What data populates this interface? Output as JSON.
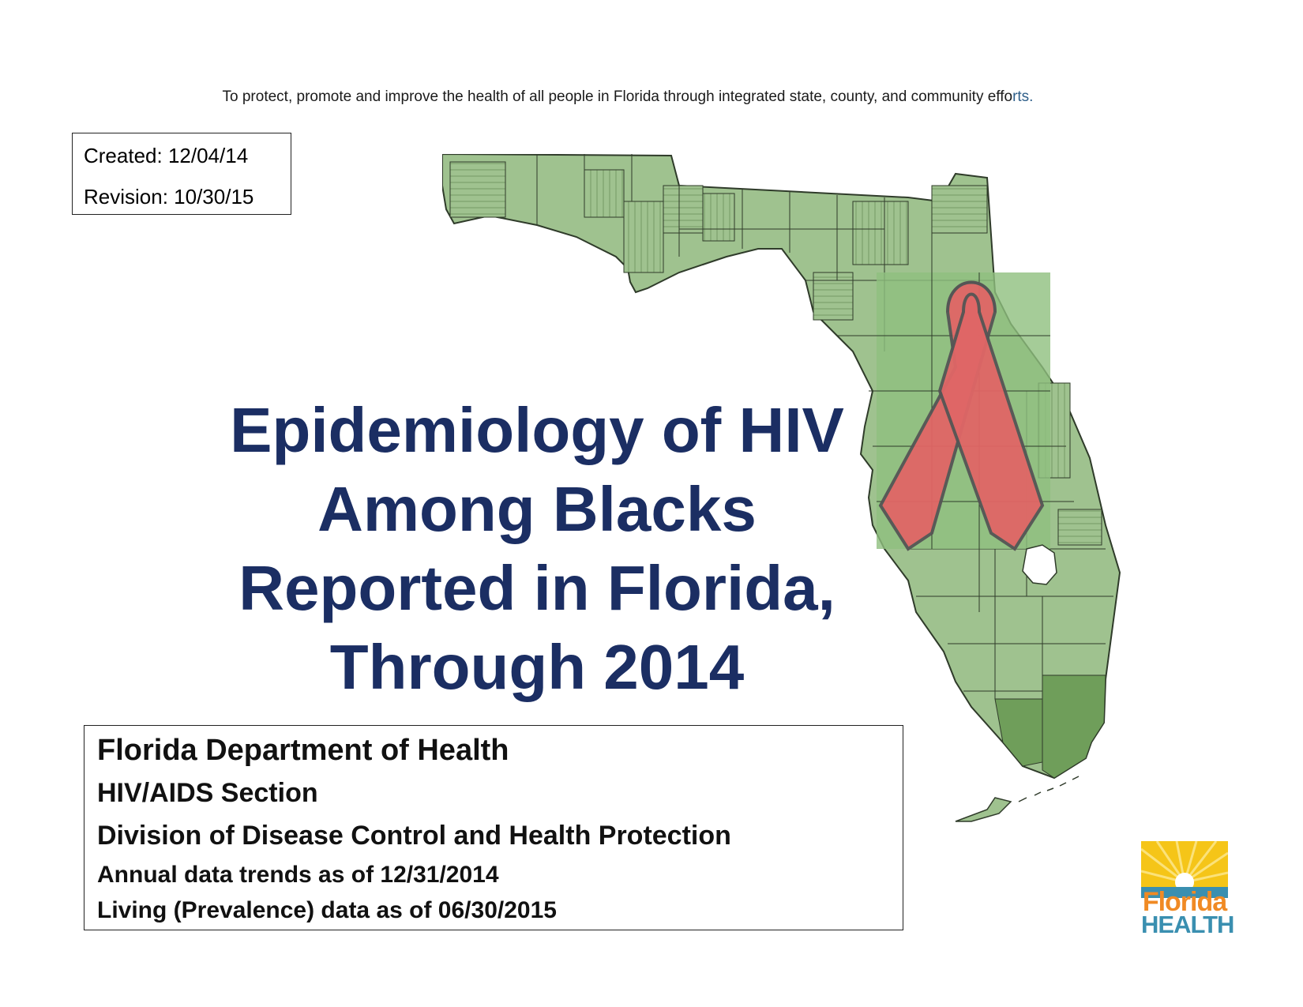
{
  "mission": {
    "text": "To protect, promote and improve the health of all people in Florida through integrated state, county, and community effo",
    "tail": "rts."
  },
  "dates": {
    "created": "Created: 12/04/14",
    "revision": "Revision: 10/30/15"
  },
  "title": {
    "line1": "Epidemiology of HIV",
    "line2": "Among Blacks",
    "line3": "Reported in Florida,",
    "line4": "Through 2014"
  },
  "info": {
    "department": "Florida Department of Health",
    "section": "HIV/AIDS Section",
    "division": "Division of Disease Control and Health Protection",
    "annual": "Annual data trends as of 12/31/2014",
    "living": "Living (Prevalence) data as of 06/30/2015"
  },
  "logo": {
    "word1": "Florida",
    "word2": "HEALTH"
  },
  "colors": {
    "title": "#1b2e63",
    "map_fill": "#9fc28f",
    "map_highlight": "#8fbf7e",
    "map_dark": "#6f9e5a",
    "ribbon": "#e06666",
    "logo_orange": "#f08a24",
    "logo_blue": "#3a8fb0"
  },
  "icons": {
    "map": "florida-county-map",
    "ribbon": "red-awareness-ribbon",
    "logo": "florida-health-sun-logo"
  }
}
